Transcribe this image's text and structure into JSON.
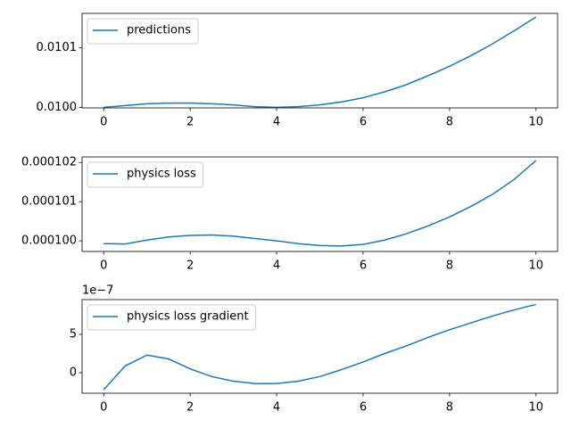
{
  "chart_data": [
    {
      "type": "line",
      "x": [
        0,
        0.5,
        1,
        1.5,
        2,
        2.5,
        3,
        3.5,
        4,
        4.5,
        5,
        5.5,
        6,
        6.5,
        7,
        7.5,
        8,
        8.5,
        9,
        9.5,
        10
      ],
      "series": [
        {
          "name": "predictions",
          "color": "#1f77b4",
          "values": [
            0.01,
            0.010003,
            0.010006,
            0.010007,
            0.010007,
            0.010006,
            0.010004,
            0.010001,
            0.01,
            0.010001,
            0.010004,
            0.010009,
            0.010016,
            0.010026,
            0.010038,
            0.010053,
            0.010069,
            0.010087,
            0.010107,
            0.010129,
            0.010152
          ]
        }
      ],
      "xlim": [
        -0.5,
        10.5
      ],
      "ylim": [
        0.009999,
        0.010158
      ],
      "xticks": [
        0,
        2,
        4,
        6,
        8,
        10
      ],
      "yticks": [
        {
          "value": 0.01,
          "label": "0.0100"
        },
        {
          "value": 0.0101,
          "label": "0.0101"
        }
      ],
      "legend": "upper left"
    },
    {
      "type": "line",
      "x": [
        0,
        0.5,
        1,
        1.5,
        2,
        2.5,
        3,
        3.5,
        4,
        4.5,
        5,
        5.5,
        6,
        6.5,
        7,
        7.5,
        8,
        8.5,
        9,
        9.5,
        10
      ],
      "series": [
        {
          "name": "physics loss",
          "color": "#1f77b4",
          "values": [
            9.993e-05,
            9.992e-05,
            0.00010002,
            0.0001001,
            0.00010014,
            0.00010015,
            0.00010012,
            0.00010006,
            0.0001,
            9.993e-05,
            9.988e-05,
            9.987e-05,
            9.991e-05,
            0.00010002,
            0.00010018,
            0.00010038,
            0.00010061,
            0.00010088,
            0.00010119,
            0.00010157,
            0.00010205
          ]
        }
      ],
      "xlim": [
        -0.5,
        10.5
      ],
      "ylim": [
        9.973e-05,
        0.00010214
      ],
      "xticks": [
        0,
        2,
        4,
        6,
        8,
        10
      ],
      "yticks": [
        {
          "value": 0.0001,
          "label": "0.000100"
        },
        {
          "value": 0.000101,
          "label": "0.000101"
        },
        {
          "value": 0.000102,
          "label": "0.000102"
        }
      ],
      "legend": "upper left"
    },
    {
      "type": "line",
      "x": [
        0,
        0.5,
        1,
        1.5,
        2,
        2.5,
        3,
        3.5,
        4,
        4.5,
        5,
        5.5,
        6,
        6.5,
        7,
        7.5,
        8,
        8.5,
        9,
        9.5,
        10
      ],
      "series": [
        {
          "name": "physics loss gradient",
          "color": "#1f77b4",
          "values": [
            -2.2,
            0.9,
            2.3,
            1.8,
            0.5,
            -0.5,
            -1.1,
            -1.4,
            -1.4,
            -1.1,
            -0.5,
            0.4,
            1.4,
            2.5,
            3.5,
            4.6,
            5.6,
            6.5,
            7.4,
            8.2,
            8.9
          ]
        }
      ],
      "xlim": [
        -0.5,
        10.5
      ],
      "ylim": [
        -2.67,
        9.53
      ],
      "xticks": [
        0,
        2,
        4,
        6,
        8,
        10
      ],
      "yticks": [
        0,
        5
      ],
      "offset_label": "1e−7",
      "legend": "upper left"
    }
  ]
}
